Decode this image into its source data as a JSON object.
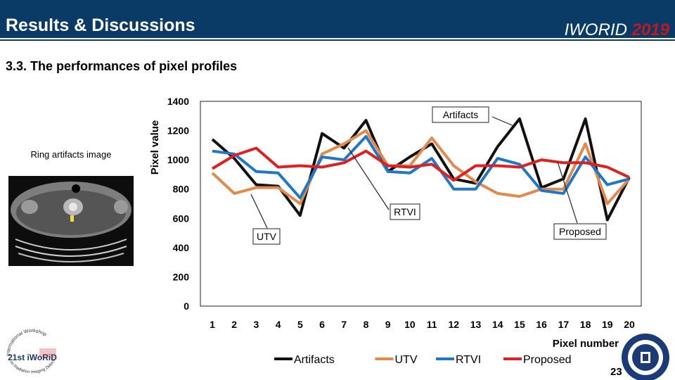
{
  "header": {
    "title": "Results & Discussions",
    "conference_name": "IWORID",
    "conference_year": "2019"
  },
  "subtitle": "3.3. The performances of pixel profiles",
  "inset": {
    "label": "Ring artifacts image"
  },
  "logo_left": {
    "line1": "International Workshop",
    "line2": "on Radiation Imaging Detectors",
    "mark": "21st iWoRiD"
  },
  "page_number": "23",
  "colors": {
    "header_bg": "#0a3a66",
    "accent_red": "#c0181e",
    "artifacts": "#111111",
    "utv": "#e38a4a",
    "rtvi": "#1f77c9",
    "proposed": "#e02020"
  },
  "chart_data": {
    "type": "line",
    "title": "",
    "xlabel": "Pixel number",
    "ylabel": "Pixel value",
    "ylim": [
      0,
      1400
    ],
    "yticks": [
      0,
      200,
      400,
      600,
      800,
      1000,
      1200,
      1400
    ],
    "x": [
      1,
      2,
      3,
      4,
      5,
      6,
      7,
      8,
      9,
      10,
      11,
      12,
      13,
      14,
      15,
      16,
      17,
      18,
      19,
      20
    ],
    "series": [
      {
        "name": "Artifacts",
        "color": "#111111",
        "values": [
          1140,
          1010,
          830,
          820,
          620,
          1180,
          1080,
          1270,
          920,
          1020,
          1110,
          870,
          840,
          1090,
          1280,
          810,
          870,
          1280,
          590,
          880
        ]
      },
      {
        "name": "UTV",
        "color": "#e38a4a",
        "values": [
          910,
          770,
          810,
          810,
          700,
          1040,
          1110,
          1200,
          960,
          960,
          1150,
          960,
          850,
          770,
          750,
          800,
          800,
          1110,
          700,
          870
        ]
      },
      {
        "name": "RTVI",
        "color": "#1f77c9",
        "values": [
          1060,
          1040,
          920,
          910,
          740,
          1020,
          1000,
          1160,
          920,
          910,
          1010,
          800,
          800,
          1010,
          970,
          790,
          770,
          1020,
          830,
          870
        ]
      },
      {
        "name": "Proposed",
        "color": "#e02020",
        "values": [
          940,
          1030,
          1080,
          950,
          960,
          950,
          980,
          1060,
          960,
          950,
          970,
          860,
          960,
          960,
          950,
          1000,
          980,
          980,
          950,
          880
        ]
      }
    ],
    "annotations": [
      "Artifacts",
      "RTVI",
      "UTV",
      "Proposed"
    ],
    "legend_position": "bottom"
  }
}
